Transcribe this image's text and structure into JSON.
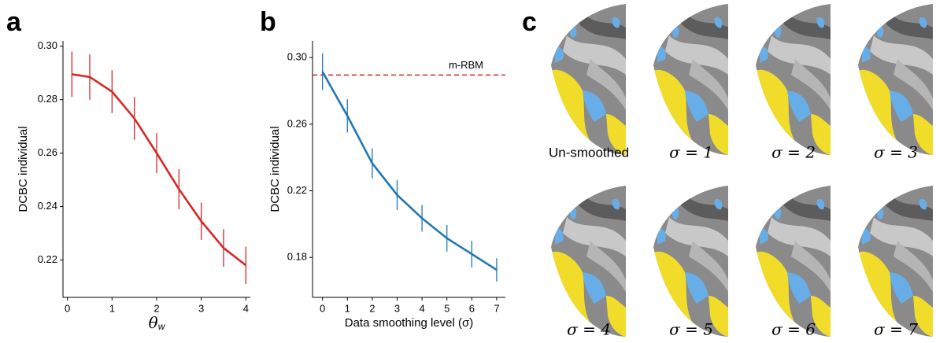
{
  "panels": [
    "a",
    "b",
    "c"
  ],
  "chart_data": [
    {
      "type": "line",
      "x_label": "θ",
      "x_label_sub": "w",
      "y_label": "DCBC individual",
      "x": [
        0.1,
        0.5,
        1,
        1.5,
        2,
        2.5,
        3,
        3.5,
        4
      ],
      "series": [
        {
          "color": "#d62728",
          "values": [
            0.2895,
            0.2885,
            0.283,
            0.273,
            0.26,
            0.2465,
            0.2345,
            0.2245,
            0.218
          ],
          "errors": [
            0.0085,
            0.0085,
            0.008,
            0.008,
            0.0075,
            0.0075,
            0.007,
            0.007,
            0.007
          ]
        }
      ],
      "xlim": [
        -0.1,
        4.1
      ],
      "xticks": [
        0,
        1,
        2,
        3,
        4
      ],
      "ylim": [
        0.206,
        0.302
      ],
      "yticks": [
        {
          "value": 0.3,
          "label": "0.30"
        },
        0.28,
        0.26,
        0.24,
        0.22
      ]
    },
    {
      "type": "line",
      "x_label": "Data smoothing level (σ)",
      "y_label": "DCBC individual",
      "x": [
        0,
        1,
        2,
        3,
        4,
        5,
        6,
        7
      ],
      "series": [
        {
          "color": "#1f77b4",
          "values": [
            0.2915,
            0.265,
            0.2365,
            0.2175,
            0.2035,
            0.1915,
            0.182,
            0.1725
          ],
          "errors": [
            0.011,
            0.01,
            0.009,
            0.009,
            0.008,
            0.008,
            0.008,
            0.007
          ]
        }
      ],
      "reference": {
        "value": 0.2895,
        "label": "m-RBM",
        "color": "#d62728"
      },
      "xlim": [
        -0.4,
        7.35
      ],
      "xticks": [
        0,
        1,
        2,
        3,
        4,
        5,
        6,
        7
      ],
      "ylim": [
        0.156,
        0.31
      ],
      "yticks": [
        {
          "value": 0.3,
          "label": "0.30"
        },
        0.26,
        0.22,
        0.18
      ]
    }
  ],
  "images": [
    {
      "caption": "Un-smoothed"
    },
    {
      "caption": "σ = 1"
    },
    {
      "caption": "σ = 2"
    },
    {
      "caption": "σ = 3"
    },
    {
      "caption": "σ = 4"
    },
    {
      "caption": "σ = 5"
    },
    {
      "caption": "σ = 6"
    },
    {
      "caption": "σ = 7"
    }
  ]
}
